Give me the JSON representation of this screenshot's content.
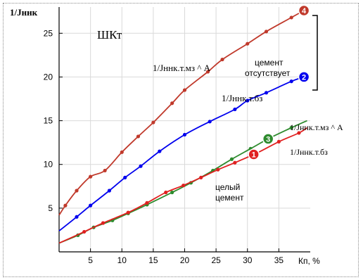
{
  "chart_data": {
    "type": "line",
    "title": "",
    "inner_label": "ШКт",
    "ylabel": "1/Jннк",
    "xlabel": "Кп, %",
    "xlim": [
      0,
      40
    ],
    "ylim": [
      0,
      28
    ],
    "xticks": [
      5,
      10,
      15,
      20,
      25,
      30,
      35
    ],
    "yticks": [
      5,
      10,
      15,
      20,
      25
    ],
    "grid": true,
    "series": [
      {
        "name": "1/Jннк.т.мз ^ A",
        "marker": "4",
        "color": "#c0392b",
        "x": [
          0,
          1,
          2.8,
          5,
          7.3,
          10,
          12.6,
          15,
          18,
          20,
          23.7,
          26,
          30,
          33,
          37,
          39.5
        ],
        "y": [
          4.2,
          5.3,
          7.0,
          8.6,
          9.3,
          11.4,
          13.2,
          14.8,
          17.0,
          18.5,
          20.6,
          22.0,
          23.8,
          25.2,
          26.8,
          27.8
        ]
      },
      {
        "name": "1/Jннк.т.бз",
        "marker": "2",
        "color": "#0000ee",
        "x": [
          0,
          2.8,
          5,
          8,
          10.5,
          13,
          16,
          20,
          24,
          28,
          30,
          33,
          37,
          39
        ],
        "y": [
          2.4,
          4.0,
          5.3,
          7.0,
          8.5,
          9.8,
          11.5,
          13.4,
          14.9,
          16.3,
          17.3,
          18.2,
          19.5,
          20.0
        ]
      },
      {
        "name": "1/Jннк.т.мз ^ A",
        "marker": "3",
        "color": "#2e8b2e",
        "x": [
          0,
          3,
          5.5,
          8.5,
          11,
          14,
          18,
          21,
          24.5,
          27.5,
          30.5,
          33.5,
          37,
          39.5
        ],
        "y": [
          1.0,
          1.9,
          2.8,
          3.6,
          4.4,
          5.4,
          6.8,
          7.9,
          9.3,
          10.6,
          11.8,
          13.0,
          14.2,
          15.0
        ]
      },
      {
        "name": "1/Jннк.т.бз",
        "marker": "1",
        "color": "#e02020",
        "x": [
          0,
          4,
          7,
          11,
          14,
          17,
          19.8,
          22.6,
          25.3,
          28,
          31.5,
          35,
          38.2,
          39.5
        ],
        "y": [
          1.0,
          2.3,
          3.3,
          4.5,
          5.6,
          6.8,
          7.6,
          8.5,
          9.4,
          10.2,
          11.3,
          12.6,
          13.6,
          14.2
        ]
      }
    ],
    "annotations": [
      {
        "text": "цемент",
        "ref": "bracket"
      },
      {
        "text": "отсутствует",
        "ref": "bracket"
      },
      {
        "text": "целый",
        "ref": "low"
      },
      {
        "text": "цемент",
        "ref": "low"
      }
    ]
  },
  "labels": {
    "y_axis": "1/Jннк",
    "x_axis": "Кп, %",
    "box_title": "ШКт",
    "s4_label": "1/Jннк.т.мз ^ A",
    "s2_label": "1/Jннк.т.бз",
    "s3_label": "1/Jннк.т.мз ^ A",
    "s1_label": "1/Jннк.т.бз",
    "absent_1": "цемент",
    "absent_2": "отсутствует",
    "whole_1": "целый",
    "whole_2": "цемент"
  },
  "colors": {
    "series_4": "#c0392b",
    "series_2": "#0000ee",
    "series_3": "#2e8b2e",
    "series_1": "#e02020",
    "grid": "#d9d9d9"
  }
}
